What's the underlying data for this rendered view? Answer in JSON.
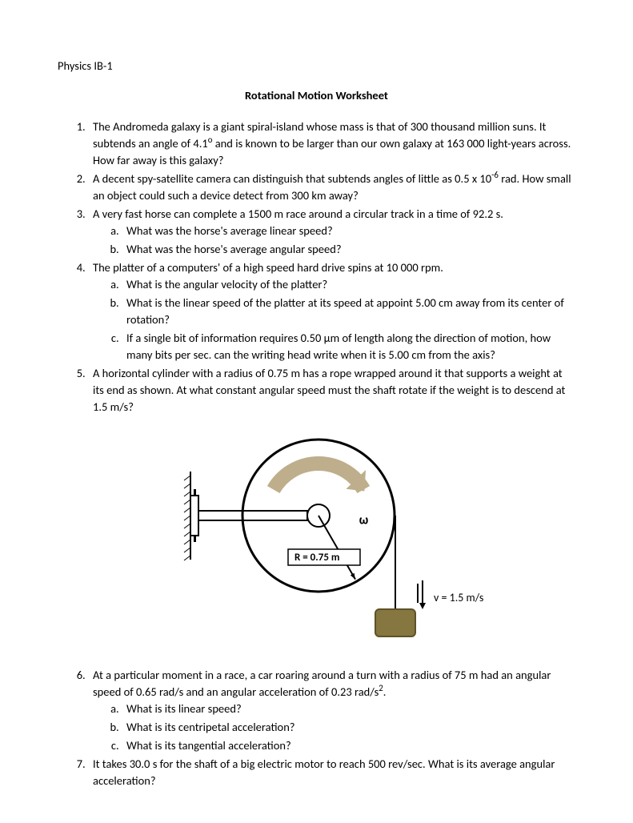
{
  "header": "Physics IB-1",
  "title": "Rotational Motion Worksheet",
  "questions": {
    "q1": {
      "pre": "The Andromeda galaxy is a giant spiral-island whose mass is that of 300 thousand million suns. It subtends an angle of 4.1",
      "sup1": "o",
      "post": " and is known to be larger than our own galaxy at 163 000 light-years across. How far away is this galaxy?"
    },
    "q2": {
      "pre": "A decent spy-satellite camera can distinguish that subtends angles of little as 0.5 x 10",
      "sup1": "-6",
      "post": " rad. How small an object could such a device detect from 300 km away?"
    },
    "q3": {
      "main": "A very fast horse can complete a 1500 m race around a circular track in a time of 92.2 s.",
      "a": "What was the horse's average linear speed?",
      "b": "What was the horse's average angular speed?"
    },
    "q4": {
      "main": "The platter of a computers' of a high speed hard drive spins at 10 000 rpm.",
      "a": "What is the angular velocity of the platter?",
      "b": "What is the linear speed of the platter at its speed at appoint 5.00 cm away from its center of rotation?",
      "c": "If a single bit of information requires 0.50 μm of length along the direction of motion, how many bits per sec. can the writing head write when it is 5.00 cm from the axis?"
    },
    "q5": {
      "main": "A horizontal cylinder with a radius of 0.75 m has a rope wrapped around it that supports a weight at its end as shown. At what constant angular speed must the shaft rotate if the weight is to descend at 1.5 m/s?"
    },
    "q6": {
      "pre": "At a particular moment in a race, a car roaring around a turn with a radius of 75 m had an angular speed of 0.65 rad/s and an angular acceleration of 0.23 rad/s",
      "sup1": "2",
      "post": ".",
      "a": "What is its linear speed?",
      "b": "What is its centripetal acceleration?",
      "c": "What is its tangential acceleration?"
    },
    "q7": {
      "main": "It takes 30.0 s for the shaft of a big electric motor to reach 500 rev/sec. What is its average angular acceleration?"
    }
  },
  "diagram": {
    "omega_label": "ω",
    "radius_label": "R = 0.75 m",
    "velocity_label": "v = 1.5 m/s",
    "colors": {
      "stroke": "#000000",
      "arrow_fill": "#beae8c",
      "weight_fill": "#86763f",
      "weight_stroke": "#5e5229",
      "bracket_fill": "#a9a9a9"
    },
    "circle_radius": 95,
    "stroke_width": 2,
    "arrow_width": 18
  }
}
